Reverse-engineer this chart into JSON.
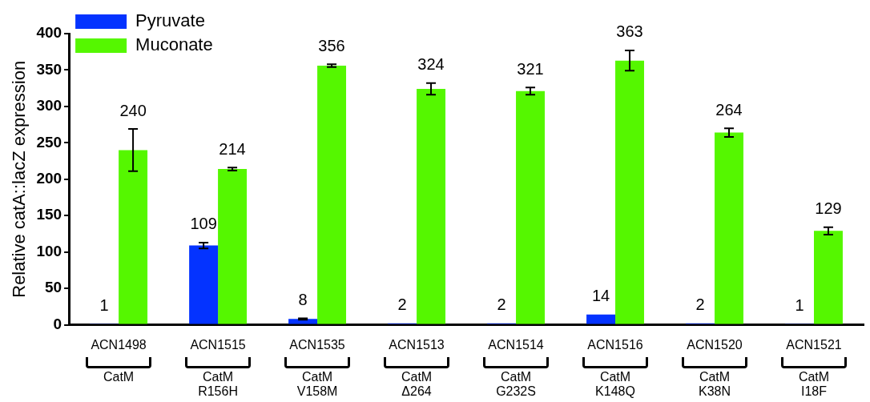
{
  "chart_data": {
    "type": "bar",
    "ylabel": "Relative catA::lacZ expression",
    "categories": [
      "ACN1498\nCatM",
      "ACN1515\nCatM\nR156H",
      "ACN1535\nCatM\nV158M",
      "ACN1513\nCatM\nΔ264",
      "ACN1514\nCatM\nG232S",
      "ACN1516\nCatM\nK148Q",
      "ACN1520\nCatM\nK38N",
      "ACN1521\nCatM\nI18F"
    ],
    "series": [
      {
        "name": "Pyruvate",
        "color": "#0433ff",
        "values": [
          1,
          109,
          8,
          2,
          2,
          14,
          2,
          1
        ],
        "errors": [
          null,
          4,
          1,
          null,
          null,
          null,
          null,
          null
        ]
      },
      {
        "name": "Muconate",
        "color": "#55f700",
        "values": [
          240,
          214,
          356,
          324,
          321,
          363,
          264,
          129
        ],
        "errors": [
          29,
          2,
          2,
          8,
          5,
          14,
          6,
          5
        ]
      }
    ],
    "ylim": [
      0,
      400
    ],
    "yticks": [
      0,
      50,
      100,
      150,
      200,
      250,
      300,
      350,
      400
    ],
    "grid": false,
    "legend": "top left",
    "data_labels": true
  }
}
